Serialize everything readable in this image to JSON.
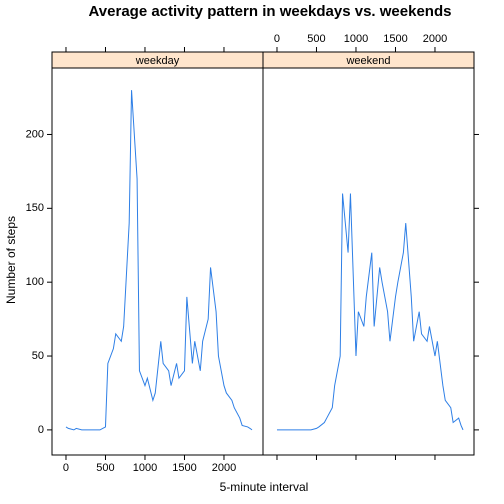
{
  "chart_data": {
    "type": "line",
    "title": "Average activity pattern in weekdays vs. weekends",
    "x_label": "5-minute interval",
    "y_label": "Number of steps",
    "x": [
      0,
      30,
      100,
      130,
      200,
      230,
      300,
      330,
      400,
      430,
      500,
      530,
      600,
      630,
      700,
      730,
      800,
      830,
      900,
      930,
      1000,
      1030,
      1100,
      1130,
      1200,
      1230,
      1300,
      1330,
      1400,
      1430,
      1500,
      1530,
      1600,
      1630,
      1700,
      1730,
      1800,
      1830,
      1900,
      1930,
      2000,
      2030,
      2100,
      2130,
      2200,
      2230,
      2300,
      2330,
      2355
    ],
    "series": [
      {
        "name": "weekday",
        "color": "#2e7fe6",
        "values": [
          2,
          1,
          0,
          1,
          0,
          0,
          0,
          0,
          0,
          0,
          2,
          45,
          55,
          65,
          60,
          70,
          140,
          230,
          170,
          40,
          30,
          35,
          20,
          25,
          60,
          45,
          40,
          30,
          45,
          35,
          40,
          90,
          45,
          60,
          40,
          60,
          75,
          110,
          80,
          50,
          30,
          25,
          20,
          15,
          8,
          3,
          2,
          1,
          0
        ]
      },
      {
        "name": "weekend",
        "color": "#2e7fe6",
        "values": [
          0,
          0,
          0,
          0,
          0,
          0,
          0,
          0,
          0,
          0,
          1,
          2,
          5,
          8,
          15,
          30,
          50,
          160,
          120,
          160,
          50,
          80,
          70,
          90,
          120,
          70,
          110,
          100,
          80,
          60,
          90,
          100,
          120,
          140,
          90,
          60,
          80,
          65,
          60,
          70,
          50,
          60,
          30,
          20,
          15,
          5,
          8,
          3,
          0
        ]
      }
    ],
    "xlim": [
      -177,
      2494
    ],
    "ylim": [
      -17,
      245
    ],
    "xticks": [
      0,
      500,
      1000,
      1500,
      2000
    ],
    "yticks": [
      0,
      50,
      100,
      150,
      200
    ],
    "strip_color": "#ffe5cc"
  }
}
